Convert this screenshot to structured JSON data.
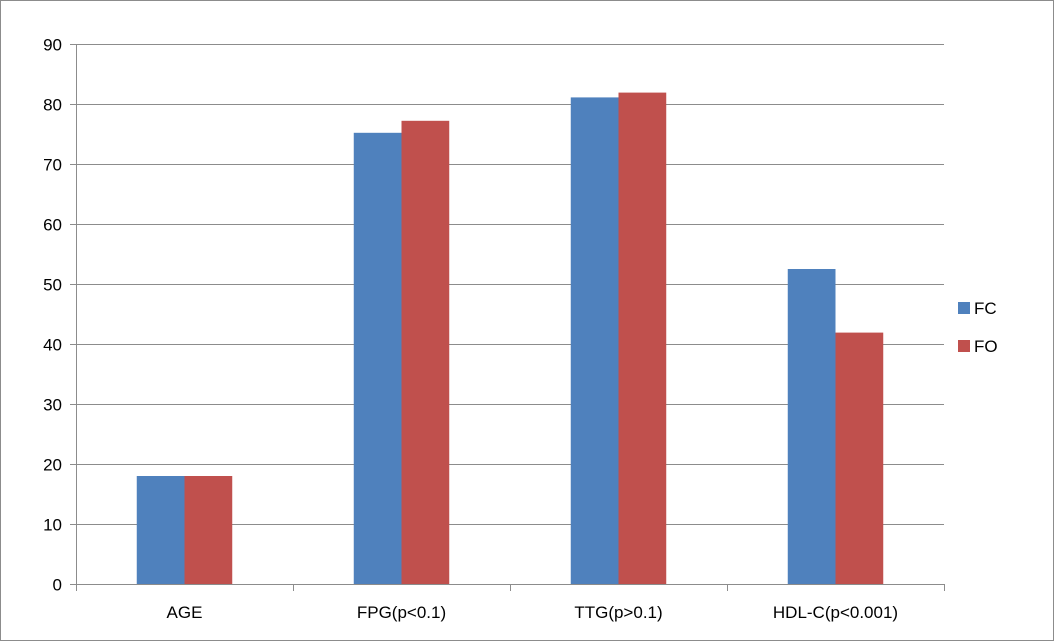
{
  "chart_data": {
    "type": "bar",
    "categories": [
      "AGE",
      "FPG(p<0.1)",
      "TTG(p>0.1)",
      "HDL-C(p<0.001)"
    ],
    "series": [
      {
        "name": "FC",
        "color": "#4f81bd",
        "values": [
          18,
          75.2,
          81.1,
          52.5
        ]
      },
      {
        "name": "FO",
        "color": "#c0504d",
        "values": [
          18,
          77.2,
          81.9,
          41.9
        ]
      }
    ],
    "ylim": [
      0,
      90
    ],
    "yticks": [
      0,
      10,
      20,
      30,
      40,
      50,
      60,
      70,
      80,
      90
    ],
    "grid": true,
    "legend": "right",
    "gridColor": "#8c8c8c"
  }
}
